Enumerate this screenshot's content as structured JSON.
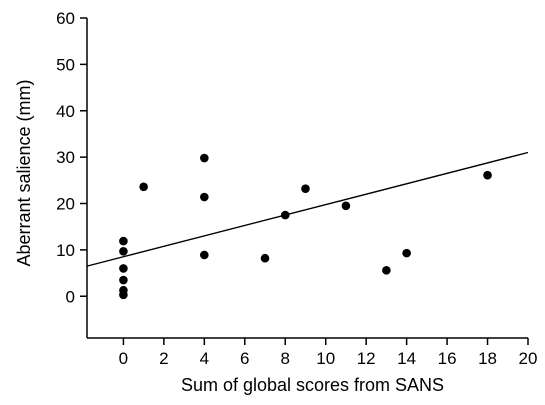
{
  "chart_data": {
    "type": "scatter",
    "title": "",
    "xlabel": "Sum of global scores from SANS",
    "ylabel": "Aberrant salience (mm)",
    "xlim": [
      -1.8,
      20
    ],
    "ylim": [
      -9,
      60
    ],
    "x_ticks": [
      0,
      2,
      4,
      6,
      8,
      10,
      12,
      14,
      16,
      18,
      20
    ],
    "y_ticks": [
      0,
      10,
      20,
      30,
      40,
      50,
      60
    ],
    "grid": false,
    "legend": "none",
    "points": [
      {
        "x": 0,
        "y": 0.3
      },
      {
        "x": 0,
        "y": 1.3
      },
      {
        "x": 0,
        "y": 3.5
      },
      {
        "x": 0,
        "y": 6
      },
      {
        "x": 0,
        "y": 9.7
      },
      {
        "x": 0,
        "y": 11.9
      },
      {
        "x": 1,
        "y": 23.6
      },
      {
        "x": 4,
        "y": 29.8
      },
      {
        "x": 4,
        "y": 21.4
      },
      {
        "x": 4,
        "y": 8.9
      },
      {
        "x": 7,
        "y": 8.2
      },
      {
        "x": 8,
        "y": 17.5
      },
      {
        "x": 9,
        "y": 23.2
      },
      {
        "x": 11,
        "y": 19.5
      },
      {
        "x": 13,
        "y": 5.6
      },
      {
        "x": 14,
        "y": 9.3
      },
      {
        "x": 18,
        "y": 26.1
      }
    ],
    "regression_line": {
      "x": [
        -1.8,
        20
      ],
      "y": [
        6.5,
        31
      ]
    }
  }
}
